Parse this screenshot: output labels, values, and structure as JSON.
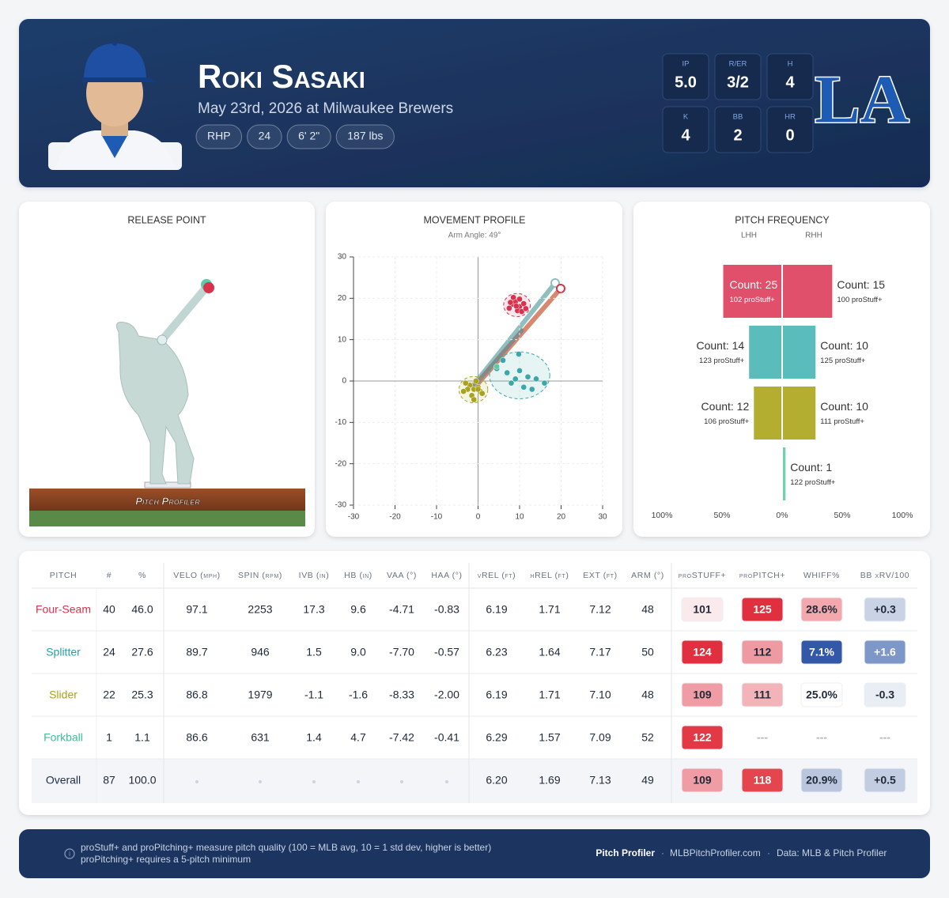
{
  "header": {
    "name": "Roki Sasaki",
    "subtitle": "May 23rd, 2026 at Milwaukee Brewers",
    "tags": [
      "RHP",
      "24",
      "6' 2\"",
      "187 lbs"
    ],
    "stats": [
      {
        "label": "IP",
        "value": "5.0"
      },
      {
        "label": "R/ER",
        "value": "3/2"
      },
      {
        "label": "H",
        "value": "4"
      },
      {
        "label": "K",
        "value": "4"
      },
      {
        "label": "BB",
        "value": "2"
      },
      {
        "label": "HR",
        "value": "0"
      }
    ],
    "team_logo": "LA"
  },
  "release_point": {
    "title": "RELEASE POINT",
    "watermark": "Pitch Profiler"
  },
  "chart_data": [
    {
      "type": "scatter",
      "title": "MOVEMENT PROFILE",
      "subtitle": "Arm Angle: 49°",
      "xlim": [
        -30,
        30
      ],
      "ylim": [
        -30,
        30
      ],
      "xticks": [
        -30,
        -20,
        -10,
        0,
        10,
        20,
        30
      ],
      "yticks": [
        -30,
        -20,
        -10,
        0,
        10,
        20,
        30
      ],
      "grid": true,
      "series": [
        {
          "color": "#d8324f",
          "x": [
            8,
            9,
            10,
            7.5,
            9.5,
            11,
            8.5,
            10.5,
            9.2,
            7.8,
            11.5,
            10
          ],
          "y": [
            18.5,
            19.2,
            18,
            17.6,
            17,
            18.7,
            20.2,
            16.8,
            18.1,
            19,
            17.5,
            19.8
          ]
        },
        {
          "color": "#3aa8a8",
          "x": [
            4.5,
            6,
            9.8,
            10,
            12,
            8,
            11,
            14,
            13,
            7,
            9,
            16
          ],
          "y": [
            3,
            5,
            6.5,
            2.5,
            1,
            -0.5,
            -1.5,
            0.5,
            -2,
            2,
            0.5,
            -0.5
          ]
        },
        {
          "color": "#a8a21c",
          "x": [
            -2,
            -1,
            0,
            -3,
            -1.5,
            0.5,
            -2.5,
            -0.5,
            1,
            -3.5,
            -1,
            0
          ],
          "y": [
            -1,
            -2,
            -1.5,
            -0.5,
            -3.5,
            -2.5,
            -2,
            0,
            -3,
            -2.5,
            -4.5,
            -2
          ]
        },
        {
          "color": "#5cc9a7",
          "x": [
            4.5
          ],
          "y": [
            3.5
          ]
        }
      ]
    },
    {
      "type": "butterfly",
      "title": "PITCH FREQUENCY",
      "categories": [
        null,
        null,
        null,
        null
      ],
      "colors": [
        "#e0506a",
        "#5bbcbc",
        "#b3ad30",
        "#6fcfb0"
      ],
      "xlim": [
        -100,
        100
      ],
      "xticks": [
        {
          "value": -100,
          "label": "100%"
        },
        {
          "value": -50,
          "label": "50%"
        },
        {
          "value": 0,
          "label": "0%"
        },
        {
          "value": 50,
          "label": "50%"
        },
        {
          "value": 100,
          "label": "100%"
        }
      ],
      "series": [
        {
          "name": "LHH",
          "values": [
            49.0,
            27.5,
            23.5,
            0
          ],
          "count_labels": [
            "Count: 25",
            "Count: 14",
            "Count: 12",
            null
          ],
          "stuff_labels": [
            "102 proStuff+",
            "123 proStuff+",
            "106 proStuff+",
            null
          ]
        },
        {
          "name": "RHH",
          "values": [
            41.7,
            27.8,
            27.8,
            2.8
          ],
          "count_labels": [
            "Count: 15",
            "Count: 10",
            "Count: 10",
            "Count: 1"
          ],
          "stuff_labels": [
            "100 proStuff+",
            "125 proStuff+",
            "111 proStuff+",
            "122 proStuff+"
          ]
        }
      ]
    }
  ],
  "table": {
    "columns": [
      "PITCH",
      "#",
      "%",
      "VELO (mph)",
      "SPIN (rpm)",
      "IVB (in)",
      "HB (in)",
      "VAA (°)",
      "HAA (°)",
      "vREL (ft)",
      "hREL (ft)",
      "EXT (ft)",
      "ARM (°)",
      "proSTUFF+",
      "proPITCH+",
      "WHIFF%",
      "BB xRV/100"
    ],
    "row_colors": [
      "#d8324f",
      "#2aa0a8",
      "#a8a21c",
      "#3fbf96",
      "#1f2d4a"
    ],
    "rows": [
      [
        "Four-Seam",
        "40",
        "46.0",
        "97.1",
        "2253",
        "17.3",
        "9.6",
        "-4.71",
        "-0.83",
        "6.19",
        "1.71",
        "7.12",
        "48",
        "101",
        "125",
        "28.6%",
        "+0.3"
      ],
      [
        "Splitter",
        "24",
        "27.6",
        "89.7",
        "946",
        "1.5",
        "9.0",
        "-7.70",
        "-0.57",
        "6.23",
        "1.64",
        "7.17",
        "50",
        "124",
        "112",
        "7.1%",
        "+1.6"
      ],
      [
        "Slider",
        "22",
        "25.3",
        "86.8",
        "1979",
        "-1.1",
        "-1.6",
        "-8.33",
        "-2.00",
        "6.19",
        "1.71",
        "7.10",
        "48",
        "109",
        "111",
        "25.0%",
        "-0.3"
      ],
      [
        "Forkball",
        "1",
        "1.1",
        "86.6",
        "631",
        "1.4",
        "4.7",
        "-7.42",
        "-0.41",
        "6.29",
        "1.57",
        "7.09",
        "52",
        "122",
        "---",
        "---",
        "---"
      ],
      [
        "Overall",
        "87",
        "100.0",
        null,
        null,
        null,
        null,
        null,
        null,
        "6.20",
        "1.69",
        "7.13",
        "49",
        "109",
        "118",
        "20.9%",
        "+0.5"
      ]
    ],
    "cell_colors": [
      [
        "#fbeaec",
        "#e0303f",
        "#f3a8ae",
        "#c9d3e5"
      ],
      [
        "#e0303f",
        "#ee9aa2",
        "#3358a8",
        "#7d97c8"
      ],
      [
        "#ef9ca4",
        "#f2b4b9",
        "#ffffff",
        "#e9edf4"
      ],
      [
        "#e33944",
        null,
        null,
        null
      ],
      [
        "#ef9ca4",
        "#e4454f",
        "#b9c6de",
        "#c2cde2"
      ]
    ]
  },
  "footer": {
    "notes": [
      "proStuff+ and proPitching+ measure pitch quality (100 = MLB avg, 10 = 1 std dev, higher is better)",
      "proPitching+ requires a 5-pitch minimum"
    ],
    "brand": "Pitch Profiler",
    "site": "MLBPitchProfiler.com",
    "source": "Data: MLB & Pitch Profiler"
  }
}
